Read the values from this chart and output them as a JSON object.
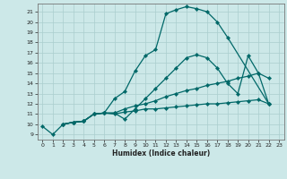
{
  "xlabel": "Humidex (Indice chaleur)",
  "bg_color": "#cce8e8",
  "grid_color": "#aacece",
  "line_color": "#006868",
  "xlim": [
    -0.5,
    23.5
  ],
  "ylim": [
    8.5,
    21.8
  ],
  "xticks": [
    0,
    1,
    2,
    3,
    4,
    5,
    6,
    7,
    8,
    9,
    10,
    11,
    12,
    13,
    14,
    15,
    16,
    17,
    18,
    19,
    20,
    21,
    22,
    23
  ],
  "yticks": [
    9,
    10,
    11,
    12,
    13,
    14,
    15,
    16,
    17,
    18,
    19,
    20,
    21
  ],
  "line1_x": [
    0,
    1,
    2,
    3,
    4,
    5,
    6,
    7,
    8,
    9,
    10,
    11,
    12,
    13,
    14,
    15,
    16,
    17,
    18,
    22
  ],
  "line1_y": [
    9.8,
    9.0,
    10.0,
    10.2,
    10.3,
    11.0,
    11.1,
    12.5,
    13.2,
    15.2,
    16.7,
    17.3,
    20.8,
    21.2,
    21.5,
    21.3,
    21.0,
    20.0,
    18.5,
    12.0
  ],
  "line2_x": [
    2,
    3,
    4,
    5,
    6,
    7,
    8,
    9,
    10,
    11,
    12,
    13,
    14,
    15,
    16,
    17,
    18,
    19,
    20,
    21,
    22
  ],
  "line2_y": [
    10.0,
    10.2,
    10.3,
    11.0,
    11.1,
    11.1,
    10.5,
    11.5,
    12.5,
    13.5,
    14.5,
    15.5,
    16.5,
    16.8,
    16.5,
    15.5,
    14.0,
    13.0,
    16.7,
    15.0,
    14.5
  ],
  "line3_x": [
    2,
    3,
    4,
    5,
    6,
    7,
    8,
    9,
    10,
    11,
    12,
    13,
    14,
    15,
    16,
    17,
    18,
    19,
    20,
    21,
    22
  ],
  "line3_y": [
    10.0,
    10.2,
    10.3,
    11.0,
    11.1,
    11.1,
    11.5,
    11.8,
    12.0,
    12.3,
    12.7,
    13.0,
    13.3,
    13.5,
    13.8,
    14.0,
    14.2,
    14.5,
    14.7,
    15.0,
    12.0
  ],
  "line4_x": [
    2,
    3,
    4,
    5,
    6,
    7,
    8,
    9,
    10,
    11,
    12,
    13,
    14,
    15,
    16,
    17,
    18,
    19,
    20,
    21,
    22
  ],
  "line4_y": [
    10.0,
    10.2,
    10.3,
    11.0,
    11.1,
    11.0,
    11.2,
    11.3,
    11.5,
    11.5,
    11.6,
    11.7,
    11.8,
    11.9,
    12.0,
    12.0,
    12.1,
    12.2,
    12.3,
    12.4,
    12.0
  ]
}
